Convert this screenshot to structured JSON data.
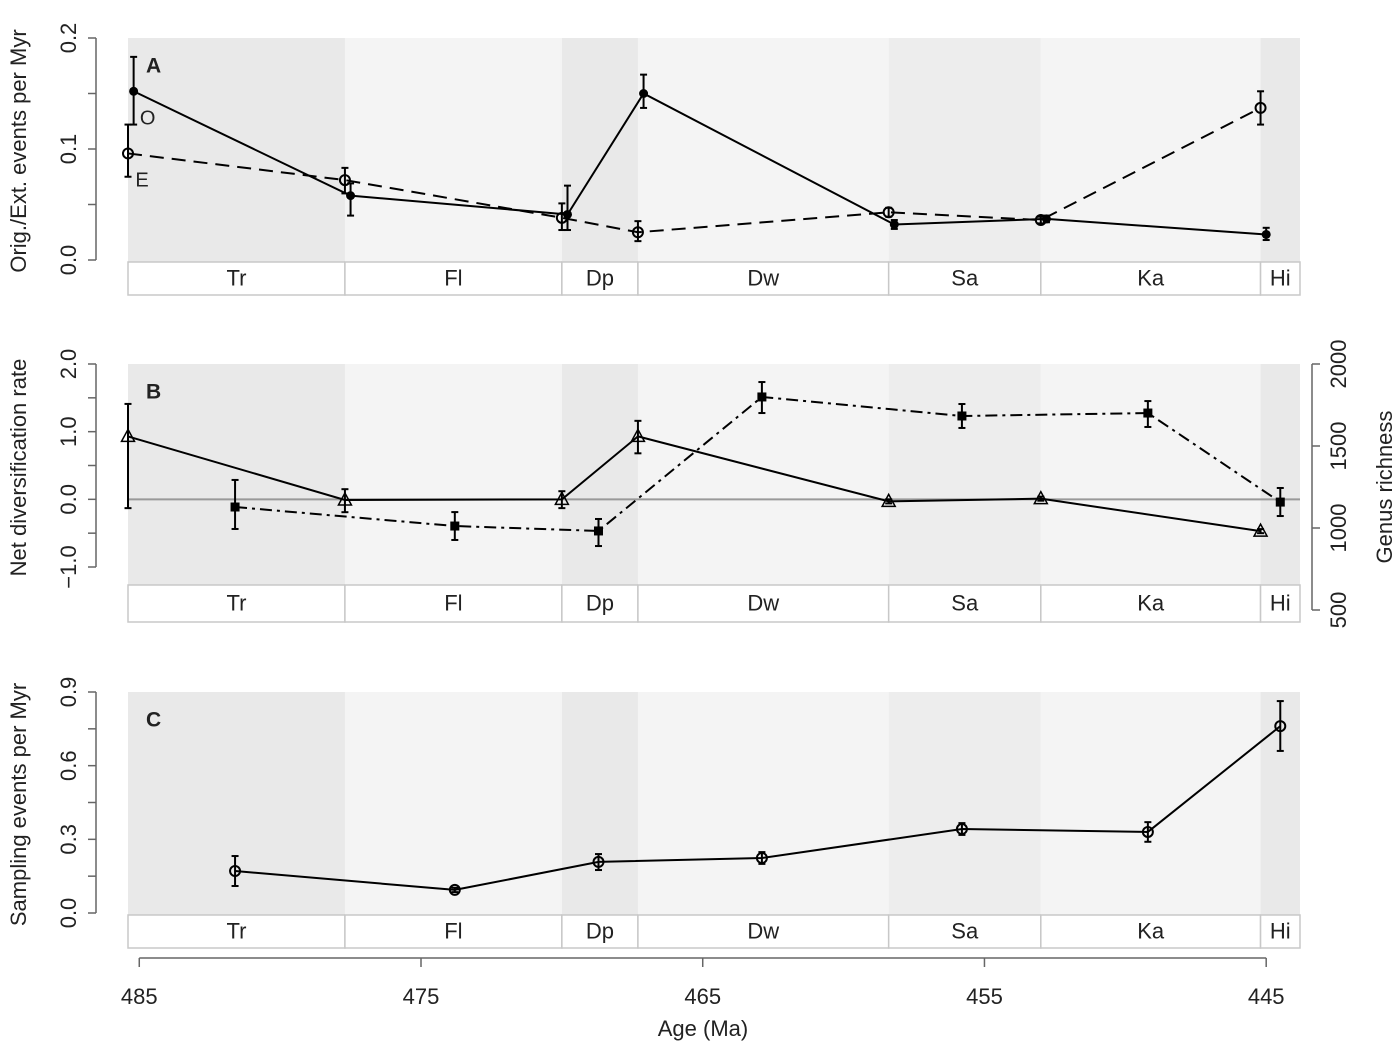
{
  "chart_data": [
    {
      "type": "line",
      "label": "A",
      "ylabel": "Orig./Ext. events per Myr",
      "xlim": [
        485.4,
        443.8
      ],
      "ylim": [
        0,
        0.2
      ],
      "yticks": [
        {
          "value": 0,
          "label": "0.0"
        },
        0.1,
        0.2
      ],
      "yminor_ticks": [
        0.05,
        0.15
      ],
      "stages": {
        "names": [
          "Tr",
          "Fl",
          "Dp",
          "Dw",
          "Sa",
          "Ka",
          "Hi"
        ],
        "bounds": [
          485.4,
          477.7,
          470.0,
          467.3,
          458.4,
          453.0,
          445.2,
          443.8
        ]
      },
      "series": [
        {
          "name": "O",
          "marker": "filled-circle",
          "dash": "solid",
          "color": "#000000",
          "x": [
            485.2,
            477.5,
            469.8,
            467.1,
            458.2,
            452.8,
            445.0
          ],
          "values": [
            0.152,
            0.058,
            0.041,
            0.15,
            0.032,
            0.037,
            0.023
          ],
          "err_low": [
            0.122,
            0.04,
            0.027,
            0.137,
            0.028,
            0.034,
            0.018
          ],
          "err_high": [
            0.183,
            0.069,
            0.067,
            0.167,
            0.036,
            0.04,
            0.029
          ]
        },
        {
          "name": "E",
          "marker": "open-circle",
          "dash": "dashed",
          "color": "#000000",
          "x": [
            485.4,
            477.7,
            470.0,
            467.3,
            458.4,
            453.0,
            445.2
          ],
          "values": [
            0.096,
            0.072,
            0.038,
            0.025,
            0.043,
            0.036,
            0.137
          ],
          "err_low": [
            0.075,
            0.06,
            0.027,
            0.017,
            0.039,
            0.033,
            0.122
          ],
          "err_high": [
            0.122,
            0.083,
            0.051,
            0.035,
            0.047,
            0.039,
            0.152
          ]
        }
      ]
    },
    {
      "type": "line",
      "label": "B",
      "ylabel": "Net diversification rate",
      "y2label": "Genus richness",
      "xlim": [
        485.4,
        443.8
      ],
      "ylim": [
        -1,
        2
      ],
      "y2lim": [
        500,
        2000
      ],
      "hline": 0,
      "yticks": [
        {
          "value": -1,
          "label": "−1.0"
        },
        {
          "value": 0,
          "label": "0.0"
        },
        {
          "value": 1,
          "label": "1.0"
        },
        {
          "value": 2,
          "label": "2.0"
        }
      ],
      "yminor_ticks": [
        -0.5,
        0.5,
        1.5
      ],
      "y2ticks": [
        500,
        1000,
        1500,
        2000
      ],
      "stages": {
        "names": [
          "Tr",
          "Fl",
          "Dp",
          "Dw",
          "Sa",
          "Ka",
          "Hi"
        ],
        "bounds": [
          485.4,
          477.7,
          470.0,
          467.3,
          458.4,
          453.0,
          445.2,
          443.8
        ]
      },
      "series": [
        {
          "marker": "open-triangle",
          "dash": "solid",
          "color": "#000000",
          "x": [
            485.4,
            477.7,
            470.0,
            467.3,
            458.4,
            453.0,
            445.2
          ],
          "values": [
            0.93,
            -0.01,
            0.0,
            0.93,
            -0.03,
            0.01,
            -0.47
          ],
          "err_low": [
            -0.13,
            -0.19,
            -0.13,
            0.68,
            -0.06,
            -0.02,
            -0.5
          ],
          "err_high": [
            1.41,
            0.15,
            0.12,
            1.16,
            0.0,
            0.04,
            -0.44
          ]
        },
        {
          "marker": "filled-square",
          "dash": "dashdot",
          "color": "#000000",
          "axis": "y2",
          "x": [
            481.6,
            473.8,
            468.7,
            462.9,
            455.8,
            449.2,
            444.5
          ],
          "values": [
            1128,
            1012,
            982,
            1799,
            1683,
            1701,
            1158
          ],
          "err_low": [
            994,
            927,
            890,
            1701,
            1610,
            1616,
            1073
          ],
          "err_high": [
            1293,
            1097,
            1055,
            1890,
            1756,
            1774,
            1244
          ]
        }
      ]
    },
    {
      "type": "line",
      "label": "C",
      "ylabel": "Sampling events per Myr",
      "xlabel": "Age (Ma)",
      "xlim": [
        485.4,
        443.8
      ],
      "ylim": [
        0,
        0.9
      ],
      "xticks": [
        485,
        475,
        465,
        455,
        445
      ],
      "yticks": [
        {
          "value": 0,
          "label": "0.0"
        },
        0.3,
        0.6,
        0.9
      ],
      "yminor_ticks": [
        0.15,
        0.45,
        0.75
      ],
      "stages": {
        "names": [
          "Tr",
          "Fl",
          "Dp",
          "Dw",
          "Sa",
          "Ka",
          "Hi"
        ],
        "bounds": [
          485.4,
          477.7,
          470.0,
          467.3,
          458.4,
          453.0,
          445.2,
          443.8
        ]
      },
      "series": [
        {
          "marker": "open-circle",
          "dash": "solid",
          "color": "#000000",
          "x": [
            481.6,
            473.8,
            468.7,
            462.9,
            455.8,
            449.2,
            444.5
          ],
          "values": [
            0.171,
            0.094,
            0.208,
            0.224,
            0.342,
            0.33,
            0.761
          ],
          "err_low": [
            0.11,
            0.085,
            0.175,
            0.2,
            0.318,
            0.29,
            0.66
          ],
          "err_high": [
            0.232,
            0.103,
            0.24,
            0.248,
            0.366,
            0.37,
            0.863
          ]
        }
      ]
    }
  ]
}
